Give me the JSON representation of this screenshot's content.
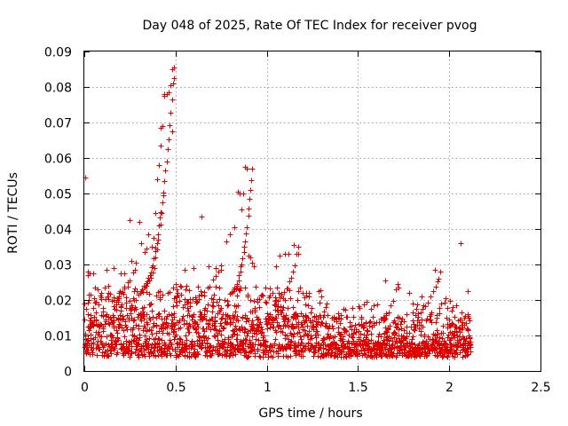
{
  "chart_data": {
    "type": "scatter",
    "title": "Day 048 of 2025, Rate Of TEC Index for receiver pvog",
    "xlabel": "GPS time / hours",
    "ylabel": "ROTI / TECUs",
    "xlim": [
      0,
      2.5
    ],
    "ylim": [
      0,
      0.09
    ],
    "xticks": [
      0,
      0.5,
      1,
      1.5,
      2,
      2.5
    ],
    "xtick_labels": [
      "0",
      "0.5",
      "1",
      "1.5",
      "2",
      "2.5"
    ],
    "yticks": [
      0,
      0.01,
      0.02,
      0.03,
      0.04,
      0.05,
      0.06,
      0.07,
      0.08,
      0.09
    ],
    "ytick_labels": [
      "0",
      "0.01",
      "0.02",
      "0.03",
      "0.04",
      "0.05",
      "0.06",
      "0.07",
      "0.08",
      "0.09"
    ],
    "grid": true,
    "marker": "plus",
    "color": "#e00000",
    "series": [
      {
        "name": "ROTI",
        "x": [
          0.005,
          0.02,
          0.02,
          0.03,
          0.05,
          0.25,
          0.26,
          0.28,
          0.3,
          0.31,
          0.33,
          0.34,
          0.35,
          0.37,
          0.38,
          0.39,
          0.4,
          0.41,
          0.42,
          0.42,
          0.43,
          0.44,
          0.44,
          0.45,
          0.46,
          0.47,
          0.48,
          0.48,
          0.49,
          0.5,
          0.64,
          0.68,
          0.72,
          0.75,
          0.78,
          0.8,
          0.82,
          0.84,
          0.85,
          0.86,
          0.87,
          0.88,
          0.89,
          0.9,
          0.91,
          0.92,
          0.93,
          1.07,
          1.1,
          1.12,
          1.15,
          1.17,
          1.05,
          0.12,
          0.16,
          0.2,
          0.22,
          0.55,
          0.6,
          1.65,
          1.72,
          1.78,
          1.85,
          1.92,
          1.94,
          1.98,
          2.02,
          2.04,
          2.06,
          2.1
        ]
      }
    ],
    "num_points_estimated": 1800
  }
}
